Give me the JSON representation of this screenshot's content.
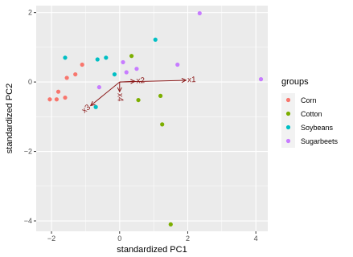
{
  "chart_data": {
    "type": "scatter",
    "xlabel": "standardized PC1",
    "ylabel": "standardized PC2",
    "xlim": [
      -2.45,
      4.35
    ],
    "ylim": [
      -4.3,
      2.2
    ],
    "x_ticks": [
      -2,
      0,
      2,
      4
    ],
    "x_tick_labels": [
      "-2",
      "0",
      "2",
      "4"
    ],
    "y_ticks": [
      -4,
      -2,
      0,
      2
    ],
    "y_tick_labels": [
      "-4",
      "-2",
      "0",
      "2"
    ],
    "grid": true,
    "legend": {
      "title": "groups",
      "position": "right",
      "entries": [
        "Corn",
        "Cotton",
        "Soybeans",
        "Sugarbeets"
      ]
    },
    "series": [
      {
        "name": "Corn",
        "color": "#F8766D",
        "points": [
          [
            -2.05,
            -0.5
          ],
          [
            -1.85,
            -0.5
          ],
          [
            -1.8,
            -0.28
          ],
          [
            -1.6,
            -0.45
          ],
          [
            -1.55,
            0.12
          ],
          [
            -1.3,
            0.22
          ],
          [
            -1.1,
            0.5
          ]
        ]
      },
      {
        "name": "Cotton",
        "color": "#7CAE00",
        "points": [
          [
            0.35,
            0.75
          ],
          [
            0.55,
            -0.52
          ],
          [
            1.2,
            -0.4
          ],
          [
            1.25,
            -1.22
          ],
          [
            1.5,
            -4.1
          ]
        ]
      },
      {
        "name": "Soybeans",
        "color": "#00BFC4",
        "points": [
          [
            -1.6,
            0.7
          ],
          [
            -0.65,
            0.65
          ],
          [
            -0.4,
            0.7
          ],
          [
            -0.15,
            0.22
          ],
          [
            1.05,
            1.22
          ],
          [
            -0.7,
            -0.72
          ]
        ]
      },
      {
        "name": "Sugarbeets",
        "color": "#C77CFF",
        "points": [
          [
            -0.6,
            -0.15
          ],
          [
            0.1,
            0.57
          ],
          [
            0.2,
            0.28
          ],
          [
            0.5,
            0.38
          ],
          [
            1.7,
            0.5
          ],
          [
            2.35,
            1.98
          ],
          [
            4.15,
            0.08
          ]
        ]
      }
    ],
    "loadings": {
      "color": "#8B1A1A",
      "vectors": [
        {
          "name": "x1",
          "x": 1.95,
          "y": 0.05
        },
        {
          "name": "x2",
          "x": 0.45,
          "y": 0.02
        },
        {
          "name": "x3",
          "x": -0.85,
          "y": -0.68
        },
        {
          "name": "x4",
          "x": 0.0,
          "y": -0.28
        }
      ]
    }
  }
}
